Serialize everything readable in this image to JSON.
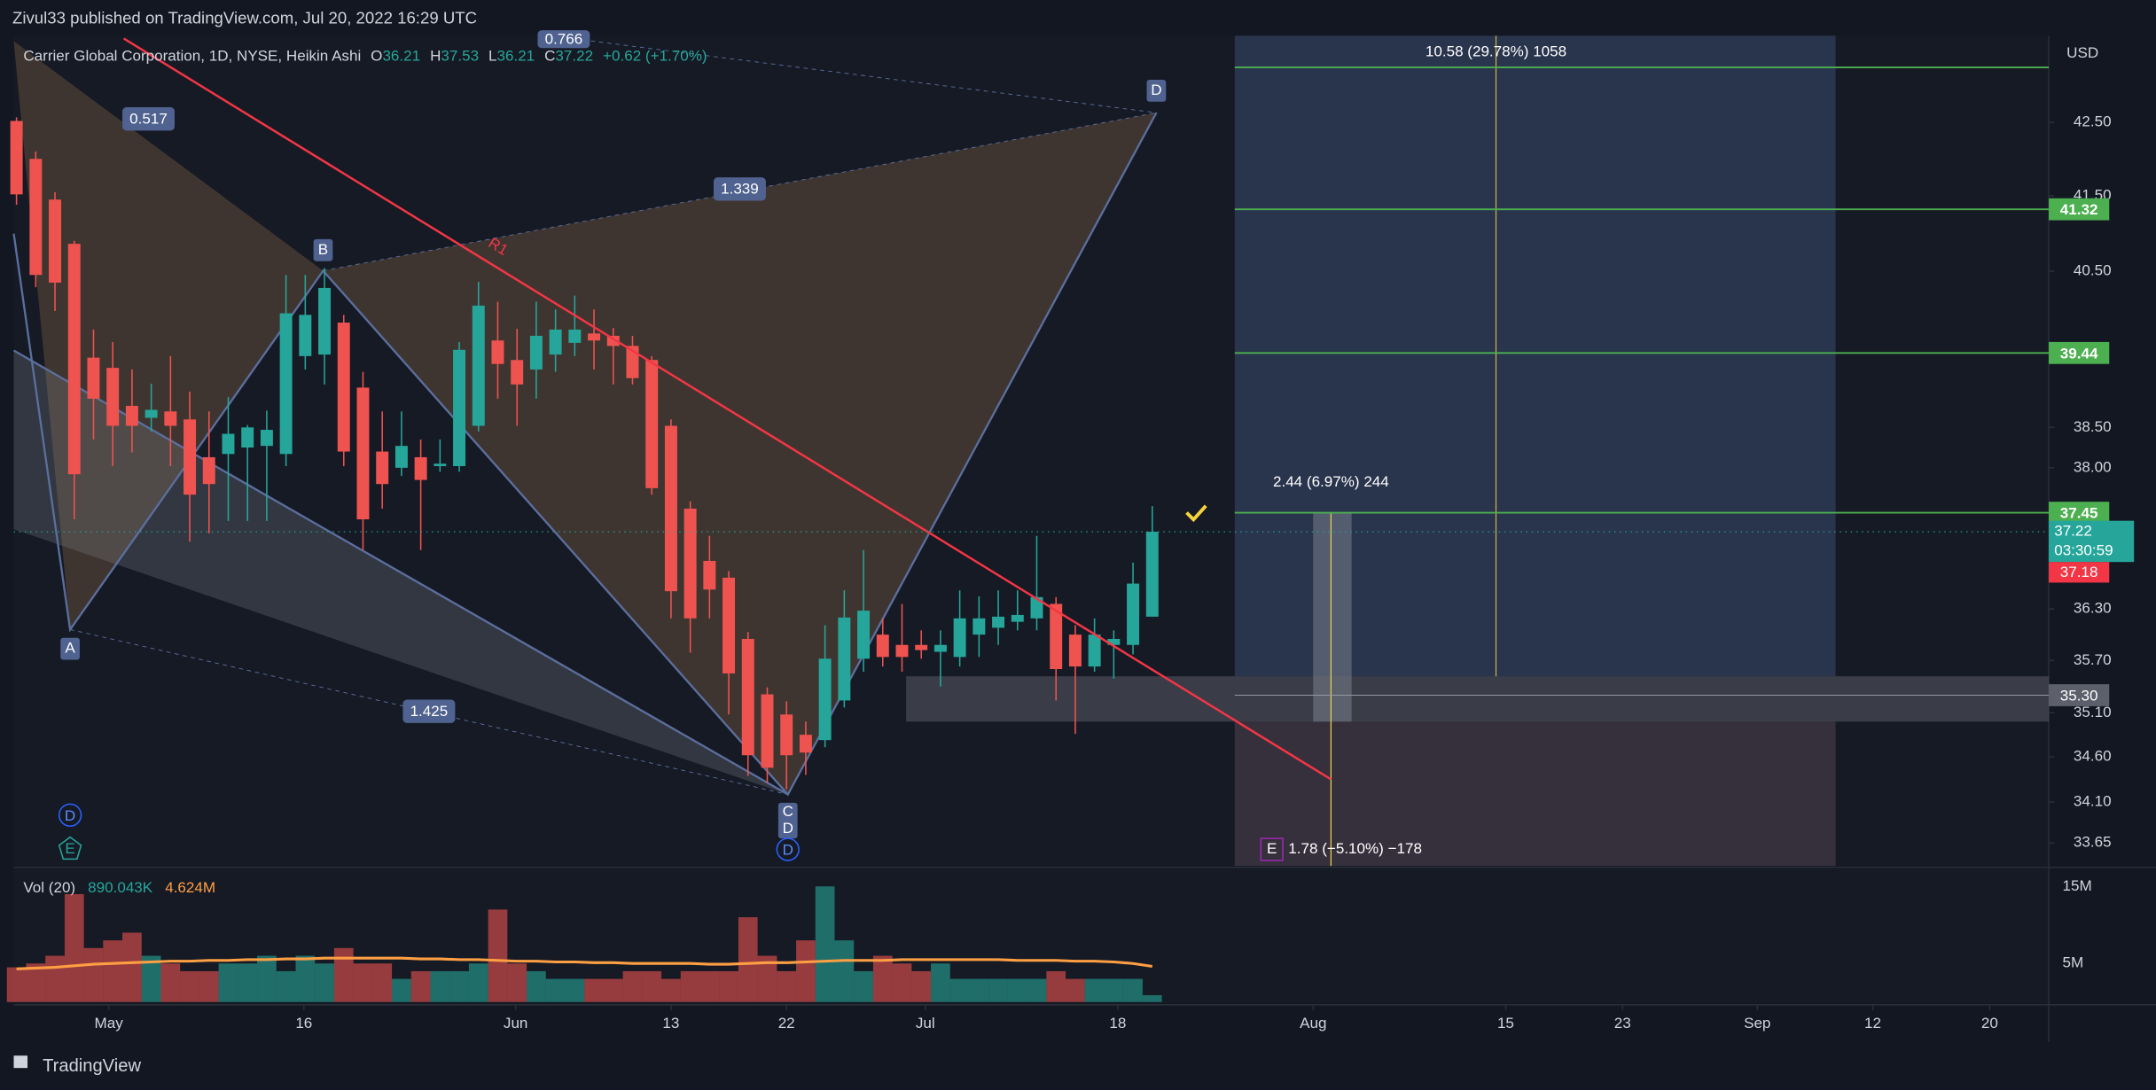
{
  "chart_data": {
    "type": "candlestick",
    "header": "Zivul33 published on TradingView.com, Jul 20, 2022 16:29 UTC",
    "brand": "TradingView",
    "currency": "USD",
    "legend": {
      "symbol": "Carrier Global Corporation, 1D, NYSE, Heikin Ashi",
      "o_label": "O",
      "o": 36.21,
      "h_label": "H",
      "h": 37.53,
      "l_label": "L",
      "l": 36.21,
      "c_label": "C",
      "c": 37.22,
      "change": "+0.62 (+1.70%)"
    },
    "open": [
      42.52,
      42.0,
      41.45,
      40.86,
      39.38,
      39.25,
      38.77,
      38.62,
      38.7,
      38.6,
      38.13,
      38.17,
      38.25,
      38.27,
      38.17,
      39.4,
      39.42,
      39.83,
      39.0,
      38.2,
      38.0,
      38.13,
      38.02,
      38.02,
      38.52,
      39.6,
      39.35,
      39.23,
      39.42,
      39.57,
      39.69,
      39.66,
      39.53,
      39.35,
      38.52,
      37.5,
      36.87,
      36.67,
      35.95,
      35.31,
      35.08,
      34.85,
      34.79,
      35.24,
      35.72,
      36.0,
      35.88,
      35.88,
      35.8,
      35.74,
      36.0,
      36.08,
      36.15,
      36.19,
      36.36,
      36.0,
      35.63,
      35.88,
      35.88,
      36.21
    ],
    "high": [
      42.57,
      42.1,
      41.55,
      40.9,
      39.74,
      39.58,
      39.23,
      39.05,
      39.4,
      38.95,
      38.7,
      38.88,
      38.53,
      38.71,
      40.45,
      40.45,
      40.54,
      39.93,
      39.2,
      38.7,
      38.7,
      38.35,
      38.35,
      39.58,
      40.36,
      40.1,
      39.75,
      40.1,
      40.0,
      40.18,
      40.0,
      39.76,
      39.66,
      39.4,
      38.6,
      37.59,
      37.17,
      36.75,
      36.03,
      35.39,
      35.23,
      35.0,
      36.11,
      36.52,
      37.0,
      36.19,
      36.36,
      36.05,
      36.05,
      36.52,
      36.45,
      36.52,
      36.52,
      37.17,
      36.44,
      36.11,
      36.19,
      36.05,
      36.85,
      37.53
    ],
    "low": [
      41.38,
      40.29,
      39.98,
      37.37,
      38.35,
      38.02,
      38.19,
      38.45,
      38.02,
      37.1,
      37.2,
      37.35,
      37.35,
      37.35,
      38.02,
      39.23,
      39.04,
      38.02,
      37.0,
      37.5,
      37.9,
      37.0,
      37.95,
      37.95,
      38.45,
      38.86,
      38.52,
      38.86,
      39.2,
      39.4,
      39.23,
      39.04,
      39.04,
      37.67,
      36.19,
      35.79,
      36.19,
      35.08,
      34.39,
      34.31,
      34.24,
      34.4,
      34.71,
      35.16,
      35.57,
      35.63,
      35.57,
      35.72,
      35.4,
      35.63,
      35.74,
      35.88,
      36.05,
      36.05,
      35.24,
      34.86,
      35.57,
      35.49,
      35.77,
      36.21
    ],
    "close": [
      41.52,
      40.45,
      40.35,
      37.92,
      38.86,
      38.52,
      38.52,
      38.72,
      38.52,
      37.67,
      37.8,
      38.42,
      38.5,
      38.47,
      39.95,
      39.93,
      40.28,
      38.2,
      37.37,
      37.8,
      38.27,
      37.85,
      38.05,
      39.48,
      40.05,
      39.3,
      39.04,
      39.66,
      39.74,
      39.74,
      39.6,
      39.53,
      39.12,
      37.75,
      36.51,
      36.19,
      36.53,
      35.55,
      34.62,
      34.48,
      34.62,
      34.65,
      35.72,
      36.2,
      36.28,
      35.74,
      35.74,
      35.82,
      35.88,
      36.19,
      36.19,
      36.21,
      36.23,
      36.44,
      35.6,
      35.63,
      36.0,
      35.95,
      36.6,
      37.22
    ],
    "up_color": "#26a69a",
    "down_color": "#ef5350",
    "ylim": [
      33.4,
      43.71
    ],
    "log_scale": true,
    "yticks": [
      {
        "value": 42.5,
        "label": "42.50"
      },
      {
        "value": 41.5,
        "label": "41.50"
      },
      {
        "value": 40.5,
        "label": "40.50"
      },
      {
        "value": 38.5,
        "label": "38.50"
      },
      {
        "value": 38,
        "label": "38.00"
      },
      {
        "value": 36.3,
        "label": "36.30"
      },
      {
        "value": 35.7,
        "label": "35.70"
      },
      {
        "value": 35.1,
        "label": "35.10"
      },
      {
        "value": 34.6,
        "label": "34.60"
      },
      {
        "value": 34.1,
        "label": "34.10"
      },
      {
        "value": 33.65,
        "label": "33.65"
      }
    ],
    "xlim": [
      -0.143,
      105.57
    ],
    "xticks": [
      {
        "value": 4.79,
        "label": "May"
      },
      {
        "value": 14.93,
        "label": "16"
      },
      {
        "value": 25.93,
        "label": "Jun"
      },
      {
        "value": 34,
        "label": "13"
      },
      {
        "value": 40,
        "label": "22"
      },
      {
        "value": 47.21,
        "label": "Jul"
      },
      {
        "value": 57.21,
        "label": "18"
      },
      {
        "value": 67.36,
        "label": "Aug"
      },
      {
        "value": 77.36,
        "label": "15"
      },
      {
        "value": 83.43,
        "label": "23"
      },
      {
        "value": 90.43,
        "label": "Sep"
      },
      {
        "value": 96.43,
        "label": "12"
      },
      {
        "value": 102.5,
        "label": "20"
      }
    ],
    "levels": [
      41.32,
      39.44,
      37.45
    ],
    "level_color": "#4caf50",
    "last_price": 37.22,
    "countdown": "03:30:59",
    "bid": 37.18,
    "zone_price": {
      "value": 35.3,
      "label": "35.30"
    },
    "volume_legend": {
      "label": "Vol (20)",
      "volume": "890.043K",
      "ma": "4.624M"
    },
    "volume": [
      4.5,
      5,
      6,
      14,
      7,
      8,
      9,
      6,
      5,
      4,
      4,
      5,
      5,
      6,
      4,
      6,
      5,
      7,
      5,
      5,
      3,
      4,
      4,
      4,
      5,
      12,
      5,
      4,
      3,
      3,
      3,
      3,
      4,
      4,
      3,
      4,
      4,
      4,
      11,
      6,
      4,
      8,
      15,
      8,
      4,
      6,
      5,
      4,
      5,
      3,
      3,
      3,
      3,
      3,
      4,
      3,
      3,
      3,
      3,
      0.89
    ],
    "volume_ma": [
      4.3,
      4.4,
      4.5,
      4.7,
      4.9,
      5.0,
      5.1,
      5.2,
      5.3,
      5.3,
      5.4,
      5.4,
      5.5,
      5.5,
      5.6,
      5.6,
      5.7,
      5.7,
      5.7,
      5.7,
      5.7,
      5.6,
      5.6,
      5.5,
      5.5,
      5.4,
      5.3,
      5.3,
      5.2,
      5.2,
      5.1,
      5.1,
      5.0,
      5.0,
      5.0,
      5.0,
      4.9,
      4.9,
      5.0,
      5.1,
      5.1,
      5.2,
      5.3,
      5.4,
      5.4,
      5.4,
      5.5,
      5.5,
      5.5,
      5.5,
      5.5,
      5.5,
      5.4,
      5.4,
      5.4,
      5.3,
      5.3,
      5.2,
      5.0,
      4.624
    ],
    "ma_color": "#ff9f43",
    "vlim": [
      0,
      17.3
    ],
    "vticks": [
      {
        "value": 15,
        "label": "15M"
      },
      {
        "value": 5,
        "label": "5M"
      }
    ],
    "drawings": {
      "points": [
        "A",
        "B",
        "C",
        "D",
        "D"
      ],
      "ratios": [
        0.517,
        0.766,
        1.339,
        1.425
      ],
      "trendline": "R1",
      "target": "10.58 (29.78%) 1058",
      "entry": "2.44 (6.97%) 244",
      "stop": "1.78 (−5.10%) −178",
      "stop_tag": "E",
      "markers": [
        "D",
        "E",
        "D"
      ]
    }
  }
}
